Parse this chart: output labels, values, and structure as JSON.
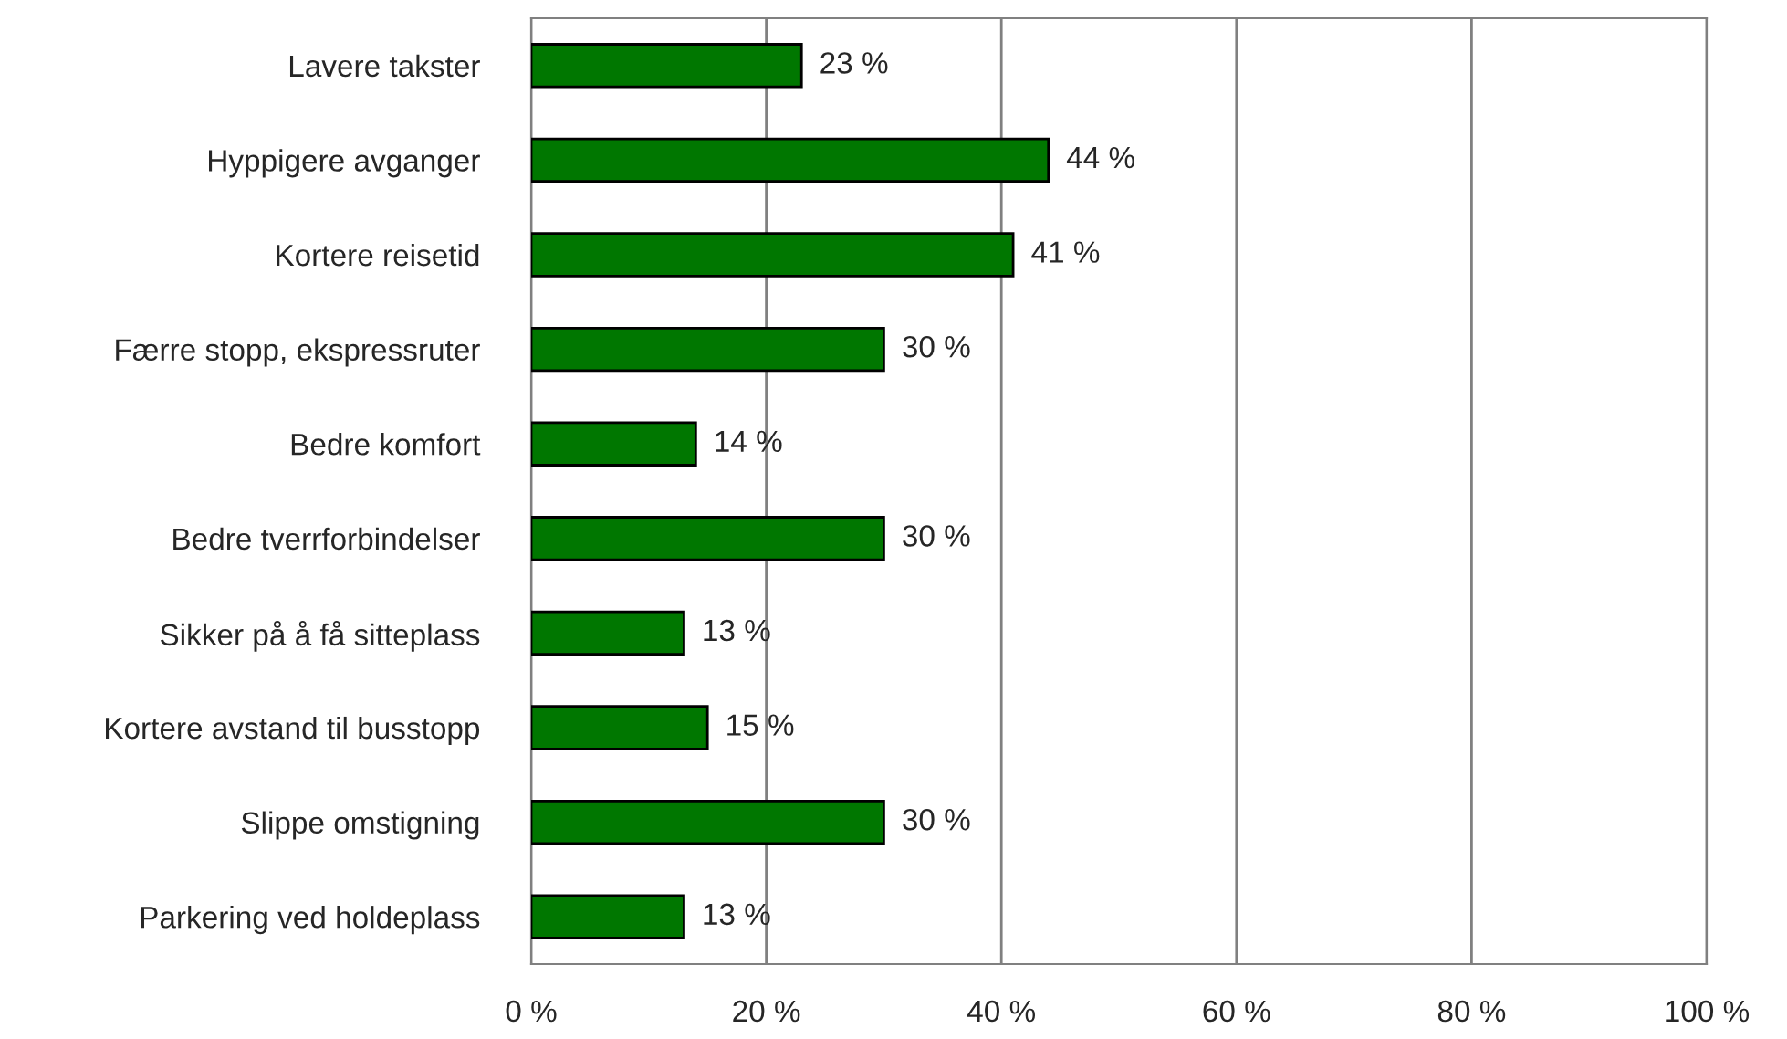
{
  "chart_data": {
    "type": "bar",
    "orientation": "horizontal",
    "categories": [
      "Lavere takster",
      "Hyppigere avganger",
      "Kortere reisetid",
      "Færre stopp, ekspressruter",
      "Bedre komfort",
      "Bedre tverrforbindelser",
      "Sikker på å få sitteplass",
      "Kortere avstand til busstopp",
      "Slippe omstigning",
      "Parkering ved holdeplass"
    ],
    "values": [
      23,
      44,
      41,
      30,
      14,
      30,
      13,
      15,
      30,
      13
    ],
    "value_labels": [
      "23 %",
      "44 %",
      "41 %",
      "30 %",
      "14 %",
      "30 %",
      "13 %",
      "15 %",
      "30 %",
      "13 %"
    ],
    "color": "#007700",
    "xlim": [
      0,
      100
    ],
    "xticks": [
      {
        "value": 0,
        "label": "0 %"
      },
      {
        "value": 20,
        "label": "20 %"
      },
      {
        "value": 40,
        "label": "40 %"
      },
      {
        "value": 60,
        "label": "60 %"
      },
      {
        "value": 80,
        "label": "80 %"
      },
      {
        "value": 100,
        "label": "100 %"
      }
    ],
    "grid": "x",
    "legend": false
  }
}
